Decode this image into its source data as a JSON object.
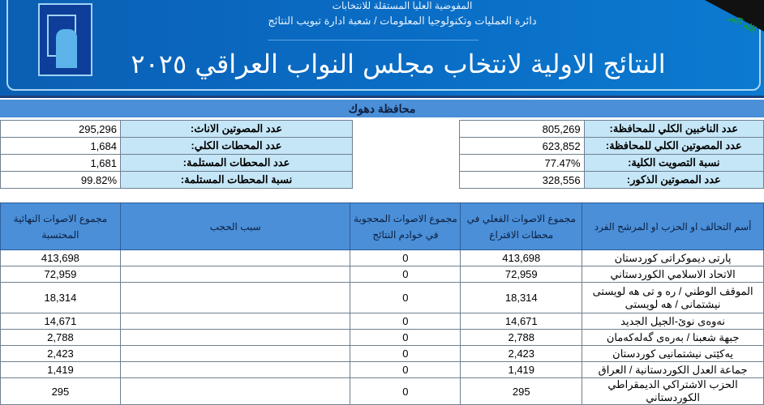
{
  "header": {
    "line1": "المفوضية العليا المستقلة للانتخابات",
    "line2": "دائرة العمليات وتكنولوجيا المعلومات / شعبة ادارة تبويب النتائج",
    "title": "النتائج الاولية لانتخاب مجلس النواب العراقي ٢٠٢٥",
    "flag_text": "الله اكبر",
    "colors": {
      "banner": "#0a6cc4",
      "header_blue": "#4a8fd8",
      "label_bg": "#c5e6f7"
    }
  },
  "province": "محافظة دهوك",
  "info_right": [
    {
      "label": "عدد الناخبين الكلي للمحافظة:",
      "value": "805,269"
    },
    {
      "label": "عدد المصوتين الكلي للمحافظة:",
      "value": "623,852"
    },
    {
      "label": "نسبة التصويت الكلية:",
      "value": "77.47%"
    },
    {
      "label": "عدد المصوتين الذكور:",
      "value": "328,556"
    }
  ],
  "info_left": [
    {
      "label": "عدد المصوتين الاناث:",
      "value": "295,296"
    },
    {
      "label": "عدد المحطات الكلي:",
      "value": "1,684"
    },
    {
      "label": "عدد المحطات المستلمة:",
      "value": "1,681"
    },
    {
      "label": "نسبة المحطات المستلمة:",
      "value": "99.82%"
    }
  ],
  "table": {
    "headers": [
      "أسم التحالف او الحزب او المرشح الفرد",
      "مجموع الاصوات الفعلي في محطات الاقتراع",
      "مجموع الاصوات المحجوبة في خوادم النتائج",
      "سبب الحجب",
      "مجموع الاصوات النهائية المحتسبة"
    ],
    "rows": [
      {
        "name": "پارتی دیموکراتی کوردستان",
        "actual": "413,698",
        "withheld": "0",
        "reason": "",
        "final": "413,698"
      },
      {
        "name": "الاتحاد الاسلامي الكوردستاني",
        "actual": "72,959",
        "withheld": "0",
        "reason": "",
        "final": "72,959"
      },
      {
        "name": "الموقف الوطني / ره و تى هه لويستى نيشتمانى / هه لويستى",
        "actual": "18,314",
        "withheld": "0",
        "reason": "",
        "final": "18,314"
      },
      {
        "name": "نەوەی نوێ-الجيل الجديد",
        "actual": "14,671",
        "withheld": "0",
        "reason": "",
        "final": "14,671"
      },
      {
        "name": "جبهة شعبنا / بەرەی گەلەکەمان",
        "actual": "2,788",
        "withheld": "0",
        "reason": "",
        "final": "2,788"
      },
      {
        "name": "یەکێتی نیشتمانیی کوردستان",
        "actual": "2,423",
        "withheld": "0",
        "reason": "",
        "final": "2,423"
      },
      {
        "name": "جماعة العدل الكوردستانية / العراق",
        "actual": "1,419",
        "withheld": "0",
        "reason": "",
        "final": "1,419"
      },
      {
        "name": "الحزب الاشتراكي الديمقراطي الكوردستاني",
        "actual": "295",
        "withheld": "0",
        "reason": "",
        "final": "295"
      }
    ]
  }
}
